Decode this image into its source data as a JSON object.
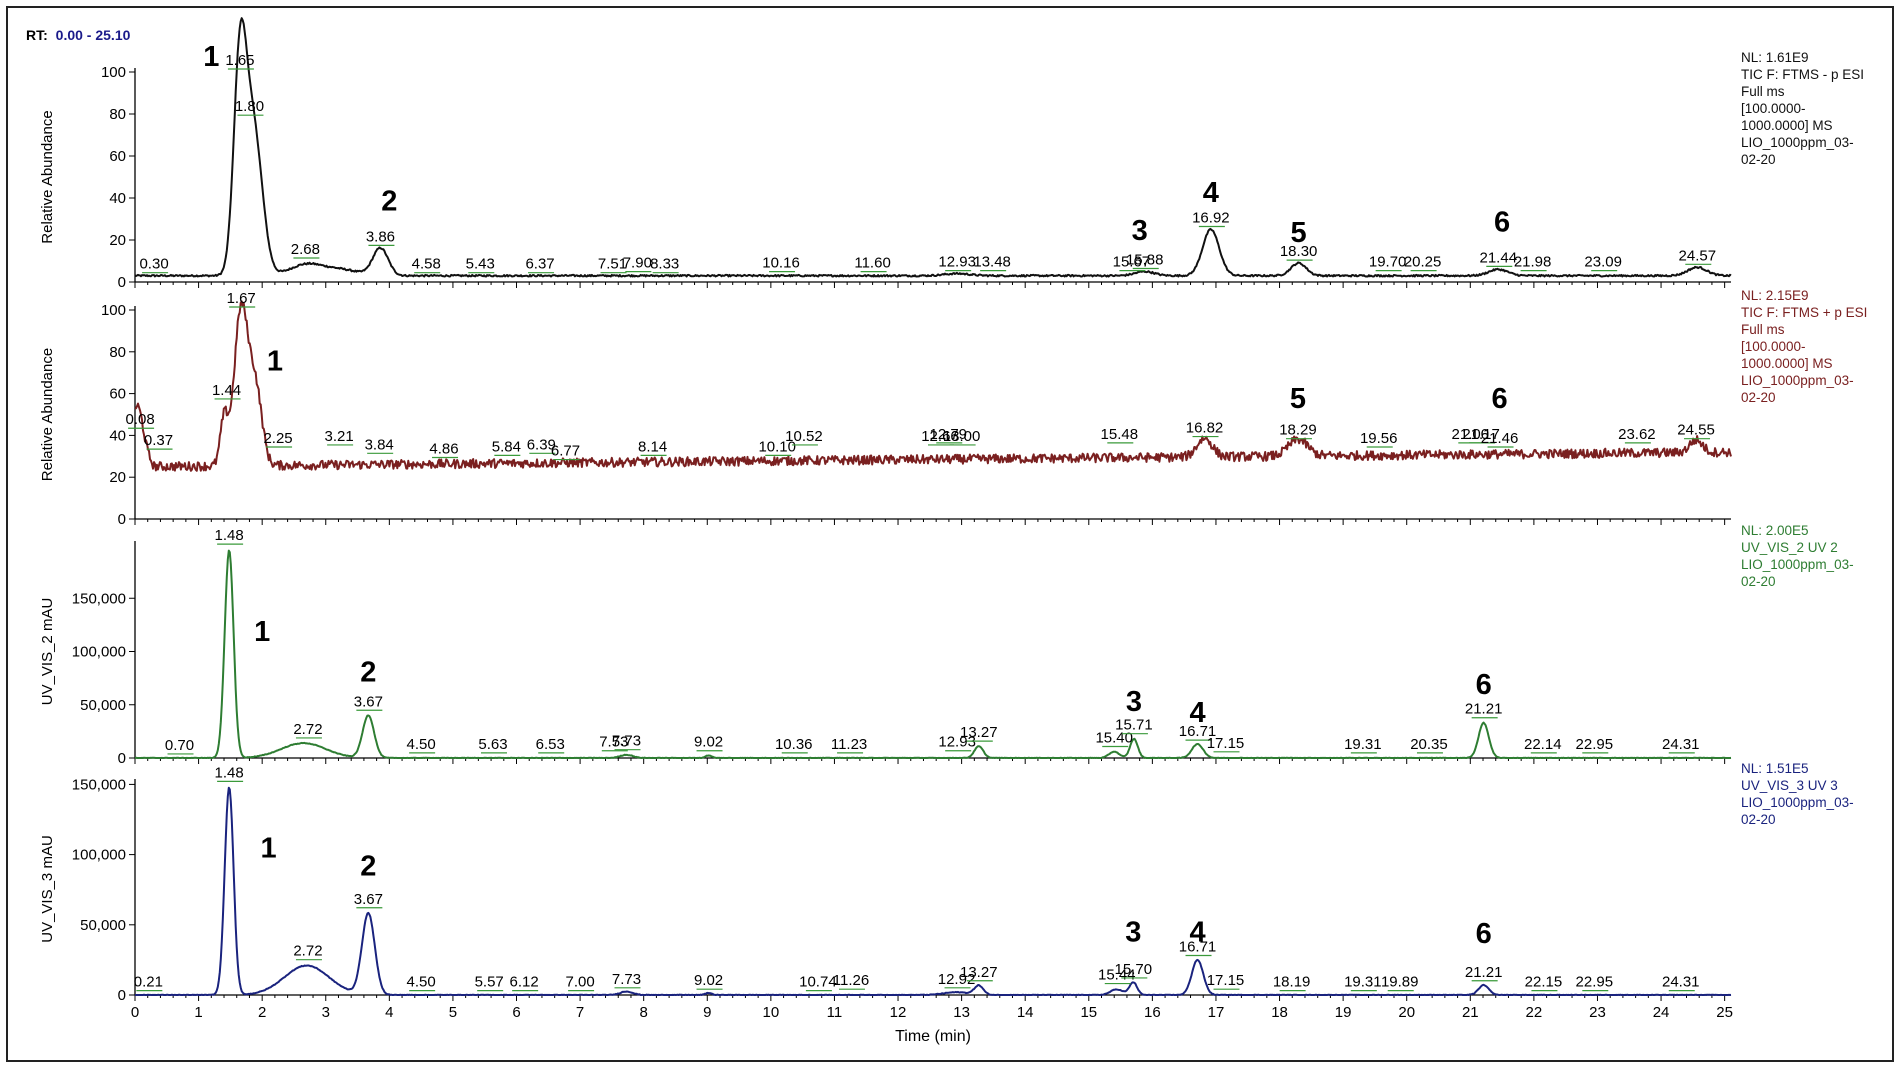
{
  "rt_label": "RT:",
  "rt_range": "0.00 - 25.10",
  "colors": {
    "rt_value": "#1a1a8a",
    "panel1": "#111111",
    "panel2": "#7a2020",
    "panel3": "#2e7d32",
    "panel4": "#1a237e"
  },
  "chart_data": [
    {
      "type": "line",
      "ylabel": "Relative Abundance",
      "ylim": [
        0,
        100
      ],
      "yticks": [
        "0",
        "20",
        "40",
        "60",
        "80",
        "100"
      ],
      "ytick_values": [
        0,
        20,
        40,
        60,
        80,
        100
      ],
      "xlim": [
        0,
        25.1
      ],
      "info": [
        "NL: 1.61E9",
        "TIC F: FTMS - p ESI",
        "Full ms",
        "[100.0000-",
        "1000.0000]  MS",
        "LIO_1000ppm_03-",
        "02-20"
      ],
      "peak_labels": [
        {
          "x": 0.3,
          "y": 3,
          "label": "0.30"
        },
        {
          "x": 1.65,
          "y": 100,
          "label": "1.65"
        },
        {
          "x": 1.8,
          "y": 78,
          "label": "1.80"
        },
        {
          "x": 2.68,
          "y": 10,
          "label": "2.68"
        },
        {
          "x": 3.86,
          "y": 16,
          "label": "3.86"
        },
        {
          "x": 4.58,
          "y": 3,
          "label": "4.58"
        },
        {
          "x": 5.43,
          "y": 3,
          "label": "5.43"
        },
        {
          "x": 6.37,
          "y": 3,
          "label": "6.37"
        },
        {
          "x": 7.51,
          "y": 3,
          "label": "7.51"
        },
        {
          "x": 7.9,
          "y": 3.5,
          "label": "7.90"
        },
        {
          "x": 8.33,
          "y": 3,
          "label": "8.33"
        },
        {
          "x": 10.16,
          "y": 3.5,
          "label": "10.16"
        },
        {
          "x": 11.6,
          "y": 3.5,
          "label": "11.60"
        },
        {
          "x": 12.93,
          "y": 4,
          "label": "12.93"
        },
        {
          "x": 13.48,
          "y": 4,
          "label": "13.48"
        },
        {
          "x": 15.67,
          "y": 4,
          "label": "15.67"
        },
        {
          "x": 15.88,
          "y": 5,
          "label": "15.88"
        },
        {
          "x": 16.92,
          "y": 25,
          "label": "16.92"
        },
        {
          "x": 18.3,
          "y": 9,
          "label": "18.30"
        },
        {
          "x": 19.7,
          "y": 4,
          "label": "19.70"
        },
        {
          "x": 20.25,
          "y": 4,
          "label": "20.25"
        },
        {
          "x": 21.44,
          "y": 6,
          "label": "21.44"
        },
        {
          "x": 21.98,
          "y": 4,
          "label": "21.98"
        },
        {
          "x": 23.09,
          "y": 4,
          "label": "23.09"
        },
        {
          "x": 24.57,
          "y": 7,
          "label": "24.57"
        }
      ],
      "annotations": [
        {
          "x": 1.2,
          "y": 106,
          "label": "1"
        },
        {
          "x": 4.0,
          "y": 34,
          "label": "2"
        },
        {
          "x": 15.8,
          "y": 20,
          "label": "3"
        },
        {
          "x": 16.92,
          "y": 38,
          "label": "4"
        },
        {
          "x": 18.3,
          "y": 19,
          "label": "5"
        },
        {
          "x": 21.5,
          "y": 24,
          "label": "6"
        }
      ],
      "baseline": 3,
      "noise": 0.4,
      "peaks": [
        {
          "x": 1.65,
          "h": 96,
          "w": 0.1
        },
        {
          "x": 1.86,
          "h": 70,
          "w": 0.14
        },
        {
          "x": 2.68,
          "h": 5,
          "w": 0.25
        },
        {
          "x": 3.2,
          "h": 3,
          "w": 0.3
        },
        {
          "x": 3.86,
          "h": 13,
          "w": 0.12
        },
        {
          "x": 12.93,
          "h": 1,
          "w": 0.2
        },
        {
          "x": 15.88,
          "h": 2,
          "w": 0.15
        },
        {
          "x": 16.92,
          "h": 22,
          "w": 0.13
        },
        {
          "x": 18.3,
          "h": 6,
          "w": 0.12
        },
        {
          "x": 21.44,
          "h": 3,
          "w": 0.15
        },
        {
          "x": 24.57,
          "h": 4,
          "w": 0.15
        }
      ]
    },
    {
      "type": "line",
      "ylabel": "Relative Abundance",
      "ylim": [
        0,
        100
      ],
      "yticks": [
        "0",
        "20",
        "40",
        "60",
        "80",
        "100"
      ],
      "ytick_values": [
        0,
        20,
        40,
        60,
        80,
        100
      ],
      "xlim": [
        0,
        25.1
      ],
      "info": [
        "NL: 2.15E9",
        "TIC F: FTMS + p ESI",
        "Full ms",
        "[100.0000-",
        "1000.0000]  MS",
        "LIO_1000ppm_03-",
        "02-20"
      ],
      "peak_labels": [
        {
          "x": 0.08,
          "y": 42,
          "label": "0.08"
        },
        {
          "x": 0.37,
          "y": 32,
          "label": "0.37"
        },
        {
          "x": 1.44,
          "y": 56,
          "label": "1.44"
        },
        {
          "x": 1.67,
          "y": 100,
          "label": "1.67"
        },
        {
          "x": 2.25,
          "y": 33,
          "label": "2.25"
        },
        {
          "x": 3.21,
          "y": 34,
          "label": "3.21"
        },
        {
          "x": 3.84,
          "y": 30,
          "label": "3.84"
        },
        {
          "x": 4.86,
          "y": 28,
          "label": "4.86"
        },
        {
          "x": 5.84,
          "y": 29,
          "label": "5.84"
        },
        {
          "x": 6.39,
          "y": 30,
          "label": "6.39"
        },
        {
          "x": 6.77,
          "y": 27,
          "label": "6.77"
        },
        {
          "x": 8.14,
          "y": 29,
          "label": "8.14"
        },
        {
          "x": 10.1,
          "y": 29,
          "label": "10.10"
        },
        {
          "x": 10.52,
          "y": 34,
          "label": "10.52"
        },
        {
          "x": 12.66,
          "y": 34,
          "label": "12.66"
        },
        {
          "x": 12.79,
          "y": 35,
          "label": "12.79"
        },
        {
          "x": 13.0,
          "y": 34,
          "label": "13.00"
        },
        {
          "x": 15.48,
          "y": 35,
          "label": "15.48"
        },
        {
          "x": 16.82,
          "y": 38,
          "label": "16.82"
        },
        {
          "x": 18.29,
          "y": 37,
          "label": "18.29"
        },
        {
          "x": 19.56,
          "y": 33,
          "label": "19.56"
        },
        {
          "x": 21.0,
          "y": 35,
          "label": "21.00"
        },
        {
          "x": 21.17,
          "y": 35,
          "label": "21.17"
        },
        {
          "x": 21.46,
          "y": 33,
          "label": "21.46"
        },
        {
          "x": 23.62,
          "y": 35,
          "label": "23.62"
        },
        {
          "x": 24.55,
          "y": 37,
          "label": "24.55"
        }
      ],
      "annotations": [
        {
          "x": 2.2,
          "y": 71,
          "label": "1"
        },
        {
          "x": 18.29,
          "y": 53,
          "label": "5"
        },
        {
          "x": 21.46,
          "y": 53,
          "label": "6"
        }
      ],
      "baseline": 25,
      "noise": 2.2,
      "peaks": [
        {
          "x": 0.05,
          "h": 17,
          "w": 0.08
        },
        {
          "x": 1.4,
          "h": 22,
          "w": 0.06
        },
        {
          "x": 1.67,
          "h": 75,
          "w": 0.11
        },
        {
          "x": 1.9,
          "h": 35,
          "w": 0.1
        },
        {
          "x": 16.82,
          "h": 9,
          "w": 0.12
        },
        {
          "x": 18.29,
          "h": 8,
          "w": 0.15
        },
        {
          "x": 24.55,
          "h": 6,
          "w": 0.1
        }
      ],
      "drift": 7
    },
    {
      "type": "line",
      "ylabel": "UV_VIS_2 mAU",
      "ylim": [
        0,
        200000
      ],
      "yticks": [
        "0",
        "50,000",
        "100,000",
        "150,000"
      ],
      "ytick_values": [
        0,
        50000,
        100000,
        150000
      ],
      "xlim": [
        0,
        25.1
      ],
      "info": [
        "NL: 2.00E5",
        "UV_VIS_2  UV 2",
        "LIO_1000ppm_03-",
        "02-20"
      ],
      "peak_labels": [
        {
          "x": 0.7,
          "y": 1000,
          "label": "0.70"
        },
        {
          "x": 1.48,
          "y": 198000,
          "label": "1.48"
        },
        {
          "x": 2.72,
          "y": 16000,
          "label": "2.72"
        },
        {
          "x": 3.67,
          "y": 42000,
          "label": "3.67"
        },
        {
          "x": 4.5,
          "y": 2000,
          "label": "4.50"
        },
        {
          "x": 5.63,
          "y": 2000,
          "label": "5.63"
        },
        {
          "x": 6.53,
          "y": 2000,
          "label": "6.53"
        },
        {
          "x": 7.53,
          "y": 4000,
          "label": "7.53"
        },
        {
          "x": 7.73,
          "y": 5000,
          "label": "7.73"
        },
        {
          "x": 9.02,
          "y": 4000,
          "label": "9.02"
        },
        {
          "x": 10.36,
          "y": 2000,
          "label": "10.36"
        },
        {
          "x": 11.23,
          "y": 2000,
          "label": "11.23"
        },
        {
          "x": 12.93,
          "y": 4000,
          "label": "12.93"
        },
        {
          "x": 13.27,
          "y": 13000,
          "label": "13.27"
        },
        {
          "x": 15.4,
          "y": 8000,
          "label": "15.40"
        },
        {
          "x": 15.71,
          "y": 20000,
          "label": "15.71"
        },
        {
          "x": 16.71,
          "y": 14000,
          "label": "16.71"
        },
        {
          "x": 17.15,
          "y": 3000,
          "label": "17.15"
        },
        {
          "x": 19.31,
          "y": 2000,
          "label": "19.31"
        },
        {
          "x": 20.35,
          "y": 2000,
          "label": "20.35"
        },
        {
          "x": 21.21,
          "y": 35000,
          "label": "21.21"
        },
        {
          "x": 22.14,
          "y": 2000,
          "label": "22.14"
        },
        {
          "x": 22.95,
          "y": 2000,
          "label": "22.95"
        },
        {
          "x": 24.31,
          "y": 2000,
          "label": "24.31"
        }
      ],
      "annotations": [
        {
          "x": 2.0,
          "y": 110000,
          "label": "1"
        },
        {
          "x": 3.67,
          "y": 72000,
          "label": "2"
        },
        {
          "x": 15.71,
          "y": 44000,
          "label": "3"
        },
        {
          "x": 16.71,
          "y": 34000,
          "label": "4"
        },
        {
          "x": 21.21,
          "y": 60000,
          "label": "6"
        }
      ],
      "baseline": 0,
      "noise": 300,
      "peaks": [
        {
          "x": 1.48,
          "h": 195000,
          "w": 0.07
        },
        {
          "x": 2.65,
          "h": 14000,
          "w": 0.35
        },
        {
          "x": 3.67,
          "h": 40000,
          "w": 0.09
        },
        {
          "x": 7.73,
          "h": 3000,
          "w": 0.1
        },
        {
          "x": 9.02,
          "h": 2500,
          "w": 0.05
        },
        {
          "x": 13.27,
          "h": 11000,
          "w": 0.07
        },
        {
          "x": 15.4,
          "h": 6000,
          "w": 0.08
        },
        {
          "x": 15.71,
          "h": 18000,
          "w": 0.06
        },
        {
          "x": 16.71,
          "h": 13000,
          "w": 0.09
        },
        {
          "x": 21.21,
          "h": 33000,
          "w": 0.08
        }
      ]
    },
    {
      "type": "line",
      "ylabel": "UV_VIS_3 mAU",
      "ylim": [
        0,
        151000
      ],
      "yticks": [
        "0",
        "50,000",
        "100,000",
        "150,000"
      ],
      "ytick_values": [
        0,
        50000,
        100000,
        150000
      ],
      "xlim": [
        0,
        25.1
      ],
      "xlabel": "Time (min)",
      "xticks": [
        "0",
        "1",
        "2",
        "3",
        "4",
        "5",
        "6",
        "7",
        "8",
        "9",
        "10",
        "11",
        "12",
        "13",
        "14",
        "15",
        "16",
        "17",
        "18",
        "19",
        "20",
        "21",
        "22",
        "23",
        "24",
        "25"
      ],
      "info": [
        "NL: 1.51E5",
        "UV_VIS_3  UV 3",
        "LIO_1000ppm_03-",
        "02-20"
      ],
      "peak_labels": [
        {
          "x": 0.21,
          "y": 1000,
          "label": "0.21"
        },
        {
          "x": 1.48,
          "y": 150000,
          "label": "1.48"
        },
        {
          "x": 2.72,
          "y": 23000,
          "label": "2.72"
        },
        {
          "x": 3.67,
          "y": 60000,
          "label": "3.67"
        },
        {
          "x": 4.5,
          "y": 1000,
          "label": "4.50"
        },
        {
          "x": 5.57,
          "y": 1000,
          "label": "5.57"
        },
        {
          "x": 6.12,
          "y": 1000,
          "label": "6.12"
        },
        {
          "x": 7.0,
          "y": 1000,
          "label": "7.00"
        },
        {
          "x": 7.73,
          "y": 3000,
          "label": "7.73"
        },
        {
          "x": 9.02,
          "y": 2000,
          "label": "9.02"
        },
        {
          "x": 10.74,
          "y": 1000,
          "label": "10.74"
        },
        {
          "x": 11.26,
          "y": 2000,
          "label": "11.26"
        },
        {
          "x": 12.92,
          "y": 3000,
          "label": "12.92"
        },
        {
          "x": 13.27,
          "y": 8000,
          "label": "13.27"
        },
        {
          "x": 15.44,
          "y": 6000,
          "label": "15.44"
        },
        {
          "x": 15.7,
          "y": 10000,
          "label": "15.70"
        },
        {
          "x": 16.71,
          "y": 26000,
          "label": "16.71"
        },
        {
          "x": 17.15,
          "y": 2000,
          "label": "17.15"
        },
        {
          "x": 18.19,
          "y": 1000,
          "label": "18.19"
        },
        {
          "x": 19.31,
          "y": 1000,
          "label": "19.31"
        },
        {
          "x": 19.89,
          "y": 1000,
          "label": "19.89"
        },
        {
          "x": 21.21,
          "y": 8000,
          "label": "21.21"
        },
        {
          "x": 22.15,
          "y": 1000,
          "label": "22.15"
        },
        {
          "x": 22.95,
          "y": 1000,
          "label": "22.95"
        },
        {
          "x": 24.31,
          "y": 1000,
          "label": "24.31"
        }
      ],
      "annotations": [
        {
          "x": 2.1,
          "y": 98000,
          "label": "1"
        },
        {
          "x": 3.67,
          "y": 85000,
          "label": "2"
        },
        {
          "x": 15.7,
          "y": 38000,
          "label": "3"
        },
        {
          "x": 16.71,
          "y": 38000,
          "label": "4"
        },
        {
          "x": 21.21,
          "y": 37000,
          "label": "6"
        }
      ],
      "baseline": 0,
      "noise": 250,
      "peaks": [
        {
          "x": 1.48,
          "h": 148000,
          "w": 0.07
        },
        {
          "x": 2.7,
          "h": 21000,
          "w": 0.35
        },
        {
          "x": 3.67,
          "h": 58000,
          "w": 0.1
        },
        {
          "x": 7.73,
          "h": 2500,
          "w": 0.1
        },
        {
          "x": 9.02,
          "h": 1500,
          "w": 0.05
        },
        {
          "x": 12.92,
          "h": 2000,
          "w": 0.2
        },
        {
          "x": 13.27,
          "h": 6500,
          "w": 0.07
        },
        {
          "x": 15.44,
          "h": 4000,
          "w": 0.1
        },
        {
          "x": 15.7,
          "h": 9000,
          "w": 0.06
        },
        {
          "x": 16.71,
          "h": 25000,
          "w": 0.09
        },
        {
          "x": 21.21,
          "h": 7000,
          "w": 0.08
        }
      ]
    }
  ]
}
